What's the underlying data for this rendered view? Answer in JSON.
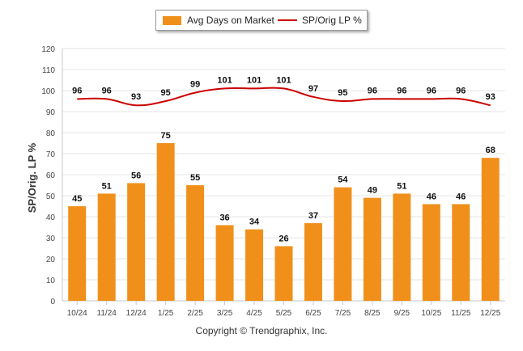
{
  "chart_data": {
    "type": "bar",
    "categories": [
      "10/24",
      "11/24",
      "12/24",
      "1/25",
      "2/25",
      "3/25",
      "4/25",
      "5/25",
      "6/25",
      "7/25",
      "8/25",
      "9/25",
      "10/25",
      "11/25",
      "12/25"
    ],
    "series": [
      {
        "name": "Avg Days on Market",
        "kind": "bar",
        "values": [
          45,
          51,
          56,
          75,
          55,
          36,
          34,
          26,
          37,
          54,
          49,
          51,
          46,
          46,
          68
        ]
      },
      {
        "name": "SP/Orig LP %",
        "kind": "line",
        "values": [
          96,
          96,
          93,
          95,
          99,
          101,
          101,
          101,
          97,
          95,
          96,
          96,
          96,
          96,
          93
        ]
      }
    ],
    "ylabel": "SP/Orig. LP %",
    "xlabel": "",
    "ylim": [
      0,
      120
    ],
    "yticks": [
      0,
      10,
      20,
      30,
      40,
      50,
      60,
      70,
      80,
      90,
      100,
      110,
      120
    ],
    "legend": "top-center",
    "grid": true
  },
  "colors": {
    "bar": "#F0901A",
    "line": "#CC0000"
  },
  "footer": {
    "copyright": "Copyright © Trendgraphix, Inc."
  }
}
